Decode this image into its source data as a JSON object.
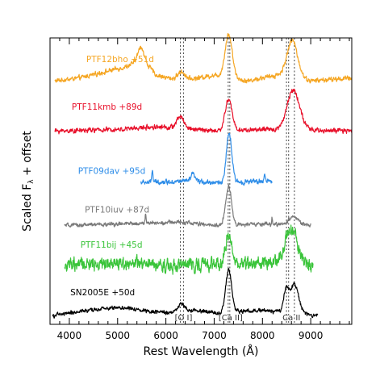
{
  "chart_data": {
    "type": "line",
    "title": "",
    "xlabel": "Rest Wavelength (Å)",
    "ylabel_main": "Scaled F",
    "ylabel_sub": "λ",
    "ylabel_rest": " + offset",
    "xlim": [
      3600,
      9850
    ],
    "ylim": [
      0,
      1
    ],
    "x_ticks": [
      4000,
      5000,
      6000,
      7000,
      8000,
      9000
    ],
    "x_tick_labels": [
      "4000",
      "5000",
      "6000",
      "7000",
      "8000",
      "9000"
    ],
    "grid": false,
    "line_markers": [
      {
        "label": "[O I]",
        "x": [
          6300,
          6364
        ]
      },
      {
        "label": "[Ca II]",
        "x": [
          7291,
          7324
        ]
      },
      {
        "label": "Ca II",
        "x": [
          8498,
          8542,
          8662
        ]
      }
    ],
    "series": [
      {
        "name": "PTF12bho +51d",
        "color": "#f5a623",
        "offset": 0.85,
        "xrange": [
          3700,
          9850
        ],
        "noise": 0.006,
        "continuum": [
          [
            3700,
            0.0
          ],
          [
            4200,
            0.01
          ],
          [
            4700,
            0.03
          ],
          [
            5200,
            0.05
          ],
          [
            5500,
            0.08
          ],
          [
            5800,
            0.02
          ],
          [
            6300,
            0.0
          ],
          [
            7000,
            0.02
          ],
          [
            7700,
            0.0
          ],
          [
            8300,
            0.02
          ],
          [
            9000,
            0.0
          ],
          [
            9850,
            0.01
          ]
        ],
        "features": [
          {
            "center": 5480,
            "amp": 0.04,
            "width": 60
          },
          {
            "center": 6320,
            "amp": 0.03,
            "width": 80
          },
          {
            "center": 7300,
            "amp": 0.15,
            "width": 75
          },
          {
            "center": 8620,
            "amp": 0.13,
            "width": 110
          }
        ],
        "label_text": "PTF12bho +51d",
        "label_x": 4350,
        "label_dy": 0.065
      },
      {
        "name": "PTF11kmb +89d",
        "color": "#e8102a",
        "offset": 0.675,
        "xrange": [
          3700,
          9850
        ],
        "noise": 0.006,
        "continuum": [
          [
            3700,
            0.0
          ],
          [
            5000,
            0.005
          ],
          [
            5800,
            0.015
          ],
          [
            6400,
            0.01
          ],
          [
            7000,
            0.0
          ],
          [
            8000,
            0.005
          ],
          [
            9850,
            0.0
          ]
        ],
        "features": [
          {
            "center": 6300,
            "amp": 0.04,
            "width": 70
          },
          {
            "center": 7300,
            "amp": 0.11,
            "width": 70
          },
          {
            "center": 8640,
            "amp": 0.14,
            "width": 130
          }
        ],
        "label_text": "PTF11kmb +89d",
        "label_x": 4050,
        "label_dy": 0.075
      },
      {
        "name": "PTF09dav +95d",
        "color": "#2e8de8",
        "offset": 0.495,
        "xrange": [
          5480,
          8200
        ],
        "noise": 0.006,
        "continuum": [
          [
            5480,
            0.0
          ],
          [
            6500,
            0.005
          ],
          [
            7000,
            0.0
          ],
          [
            8200,
            0.005
          ]
        ],
        "features": [
          {
            "center": 5720,
            "amp": 0.045,
            "width": 12
          },
          {
            "center": 6560,
            "amp": 0.025,
            "width": 40
          },
          {
            "center": 7310,
            "amp": 0.17,
            "width": 55
          },
          {
            "center": 8050,
            "amp": 0.03,
            "width": 10
          }
        ],
        "label_text": "PTF09dav +95d",
        "label_x": 4180,
        "label_dy": 0.03
      },
      {
        "name": "PTF10iuv +87d",
        "color": "#7a7a7a",
        "offset": 0.345,
        "xrange": [
          3900,
          9000
        ],
        "noise": 0.005,
        "continuum": [
          [
            3900,
            0.0
          ],
          [
            5000,
            0.005
          ],
          [
            6300,
            0.012
          ],
          [
            7000,
            0.0
          ],
          [
            8000,
            0.005
          ],
          [
            9000,
            0.0
          ]
        ],
        "features": [
          {
            "center": 5580,
            "amp": 0.035,
            "width": 10
          },
          {
            "center": 7300,
            "amp": 0.135,
            "width": 60
          },
          {
            "center": 8200,
            "amp": 0.02,
            "width": 10
          },
          {
            "center": 8640,
            "amp": 0.03,
            "width": 100
          }
        ],
        "label_text": "PTF10iuv +87d",
        "label_x": 4320,
        "label_dy": 0.045
      },
      {
        "name": "PTF11bij +45d",
        "color": "#3ac43a",
        "offset": 0.205,
        "xrange": [
          3900,
          9050
        ],
        "noise": 0.017,
        "continuum": [
          [
            3900,
            0.0
          ],
          [
            5000,
            0.01
          ],
          [
            6000,
            0.0
          ],
          [
            7000,
            0.005
          ],
          [
            8000,
            0.01
          ],
          [
            9050,
            0.0
          ]
        ],
        "features": [
          {
            "center": 7300,
            "amp": 0.1,
            "width": 60
          },
          {
            "center": 8600,
            "amp": 0.12,
            "width": 130
          }
        ],
        "label_text": "PTF11bij +45d",
        "label_x": 4230,
        "label_dy": 0.062
      },
      {
        "name": "SN2005E +50d",
        "color": "#000000",
        "offset": 0.03,
        "xrange": [
          3650,
          9150
        ],
        "noise": 0.005,
        "continuum": [
          [
            3650,
            0.0
          ],
          [
            4000,
            0.01
          ],
          [
            5000,
            0.03
          ],
          [
            5500,
            0.02
          ],
          [
            6000,
            0.01
          ],
          [
            6600,
            0.02
          ],
          [
            7000,
            0.01
          ],
          [
            8000,
            0.02
          ],
          [
            9150,
            0.0
          ]
        ],
        "features": [
          {
            "center": 6320,
            "amp": 0.025,
            "width": 70
          },
          {
            "center": 7300,
            "amp": 0.15,
            "width": 60
          },
          {
            "center": 8490,
            "amp": 0.07,
            "width": 50
          },
          {
            "center": 8660,
            "amp": 0.1,
            "width": 90
          }
        ],
        "label_text": "SN2005E +50d",
        "label_x": 4020,
        "label_dy": 0.072
      }
    ]
  }
}
